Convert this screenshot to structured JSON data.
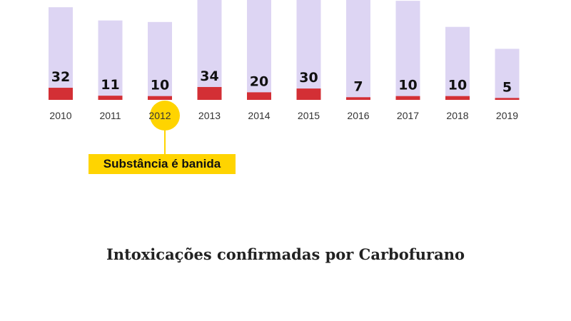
{
  "title": "Intoxicações confirmadas por Carbofurano",
  "annotation": {
    "text": "Substância é banida",
    "category": "2012",
    "color": "#ffd400"
  },
  "colors": {
    "total_bar": "#ddd5f3",
    "confirmed_bar": "#d32f35",
    "highlight_circle": "#ffd400"
  },
  "chart_data": {
    "type": "bar",
    "categories": [
      "2010",
      "2011",
      "2012",
      "2013",
      "2014",
      "2015",
      "2016",
      "2017",
      "2018",
      "2019"
    ],
    "series": [
      {
        "values": [
          32,
          11,
          10,
          34,
          20,
          30,
          7,
          10,
          10,
          5
        ],
        "color": "#d32f35",
        "data_labels": true
      },
      {
        "values": [
          245,
          210,
          206,
          290,
          300,
          300,
          290,
          262,
          193,
          135
        ],
        "color": "#ddd5f3",
        "data_labels": false
      }
    ],
    "title": "Intoxicações confirmadas por Carbofurano",
    "xlabel": "",
    "ylabel": "",
    "grid": false,
    "legend": "none"
  }
}
